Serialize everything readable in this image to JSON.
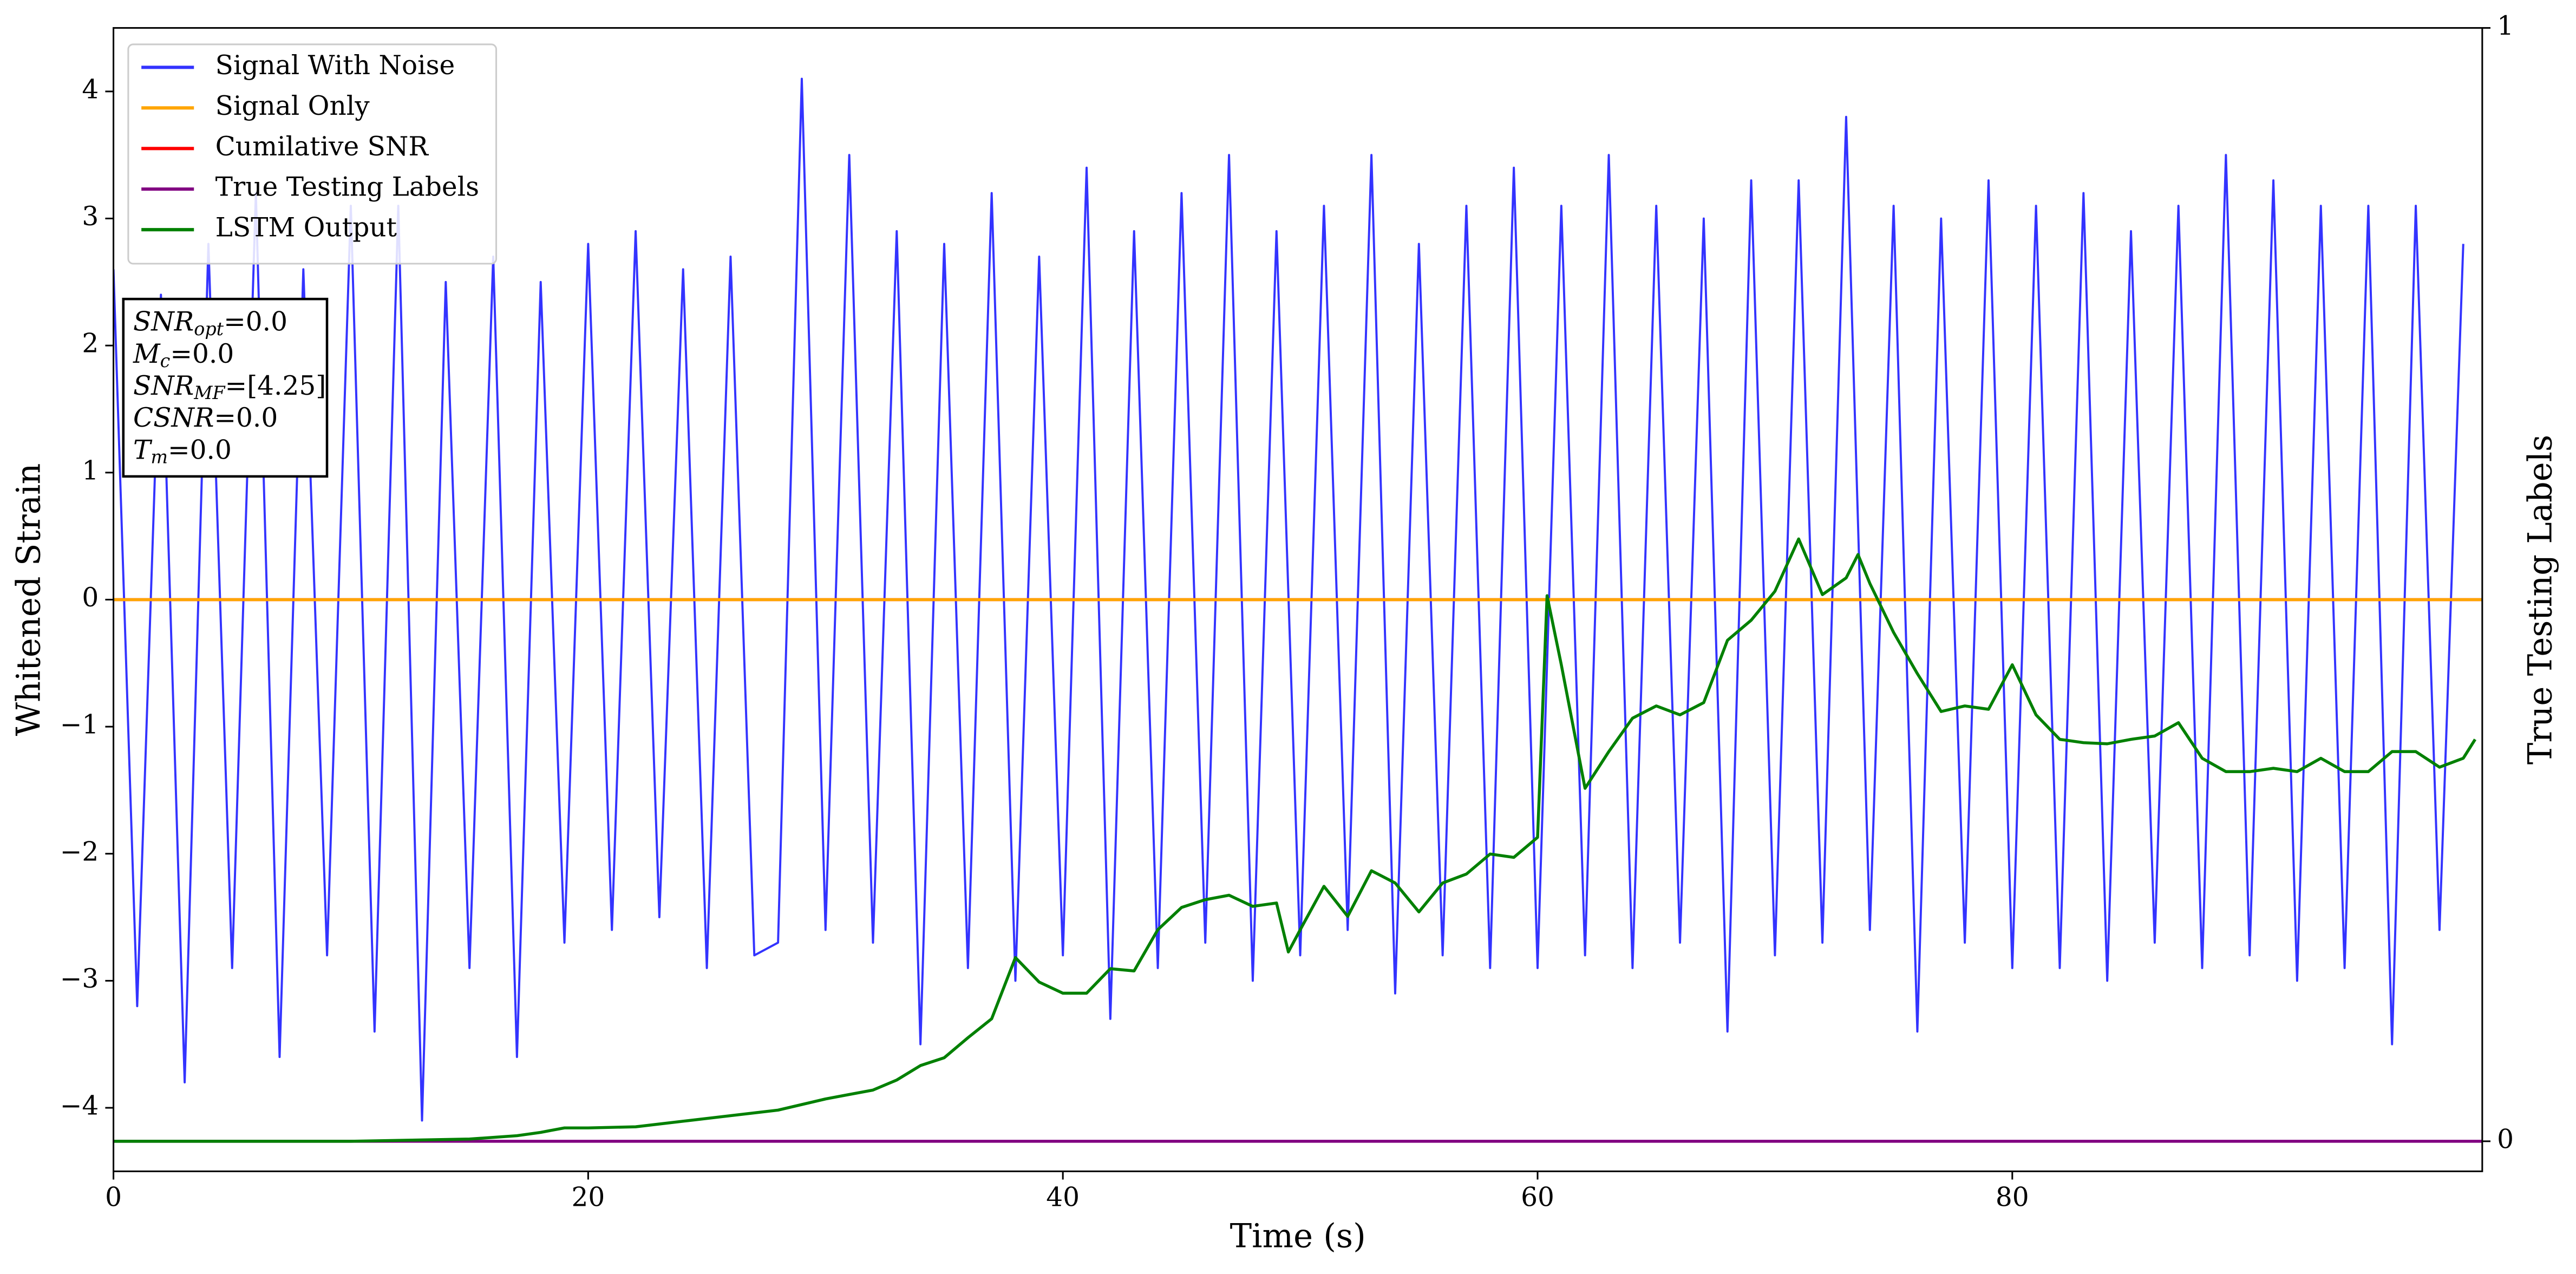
{
  "chart_data": {
    "type": "line",
    "xlabel": "Time (s)",
    "ylabel": "Whitened Strain",
    "y2label": "True Testing Labels",
    "xlim": [
      0,
      99.8
    ],
    "xticks": [
      0,
      20,
      40,
      60,
      80
    ],
    "ylim": [
      -4.5,
      4.5
    ],
    "yticks": [
      {
        "value": -4,
        "label": "−4"
      },
      {
        "value": -3,
        "label": "−3"
      },
      {
        "value": -2,
        "label": "−2"
      },
      {
        "value": -1,
        "label": "−1"
      },
      0,
      1,
      2,
      3,
      4
    ],
    "y2lim": [
      -0.027,
      1
    ],
    "y2ticks": [
      0,
      1
    ],
    "legend": "upper left",
    "annotation": [
      {
        "name": "SNR",
        "sub": "opt",
        "text": "=0.0"
      },
      {
        "name": "M",
        "sub": "c",
        "text": "=0.0"
      },
      {
        "name": "SNR",
        "sub": "MF",
        "text": "=[4.25]"
      },
      {
        "name": "CSNR",
        "sub": null,
        "text": "=0.0"
      },
      {
        "name": "T",
        "sub": "m",
        "text": "=0.0"
      }
    ],
    "series": [
      {
        "name": "Signal With Noise",
        "color": "#3333ff",
        "x": [
          0,
          1,
          2,
          3,
          4,
          5,
          6,
          7,
          8,
          9,
          10,
          11,
          12,
          13,
          14,
          15,
          16,
          17,
          18,
          19,
          20,
          21,
          22,
          23,
          24,
          25,
          26,
          27,
          28,
          29,
          30,
          31,
          32,
          33,
          34,
          35,
          36,
          37,
          38,
          39,
          40,
          41,
          42,
          43,
          44,
          45,
          46,
          47,
          48,
          49,
          50,
          51,
          52,
          53,
          54,
          55,
          56,
          57,
          58,
          59,
          60,
          61,
          62,
          63,
          64,
          65,
          66,
          67,
          68,
          69,
          70,
          71,
          72,
          73,
          74,
          75,
          76,
          77,
          78,
          79,
          80,
          81,
          82,
          83,
          84,
          85,
          86,
          87,
          88,
          89,
          90,
          91,
          92,
          93,
          94,
          95,
          96,
          97,
          98,
          99
        ],
        "values": [
          2.6,
          -3.2,
          2.4,
          -3.8,
          2.8,
          -2.9,
          3.2,
          -3.6,
          2.6,
          -2.8,
          3.1,
          -3.4,
          3.1,
          -4.1,
          2.5,
          -2.9,
          2.7,
          -3.6,
          2.5,
          -2.7,
          2.8,
          -2.6,
          2.9,
          -2.5,
          2.6,
          -2.9,
          2.7,
          -2.8,
          -2.7,
          4.1,
          -2.6,
          3.5,
          -2.7,
          2.9,
          -3.5,
          2.8,
          -2.9,
          3.2,
          -3.0,
          2.7,
          -2.8,
          3.4,
          -3.3,
          2.9,
          -2.9,
          3.2,
          -2.7,
          3.5,
          -3.0,
          2.9,
          -2.8,
          3.1,
          -2.6,
          3.5,
          -3.1,
          2.8,
          -2.8,
          3.1,
          -2.9,
          3.4,
          -2.9,
          3.1,
          -2.8,
          3.5,
          -2.9,
          3.1,
          -2.7,
          3.0,
          -3.4,
          3.3,
          -2.8,
          3.3,
          -2.7,
          3.8,
          -2.6,
          3.1,
          -3.4,
          3.0,
          -2.7,
          3.3,
          -2.9,
          3.1,
          -2.9,
          3.2,
          -3.0,
          2.9,
          -2.7,
          3.1,
          -2.9,
          3.5,
          -2.8,
          3.3,
          -3.0,
          3.1,
          -2.9,
          3.1,
          -3.5,
          3.1,
          -2.6,
          2.8
        ]
      },
      {
        "name": "Signal Only",
        "color": "#ffa500",
        "x": [
          0,
          99.8
        ],
        "values": [
          0,
          0
        ]
      },
      {
        "name": "Cumilative SNR",
        "color": "#ff0000",
        "x": [
          0,
          99.8
        ],
        "values": [
          0,
          0
        ]
      },
      {
        "name": "True Testing Labels",
        "color": "#800080",
        "axis": "y2",
        "x": [
          0,
          99.8
        ],
        "values": [
          0,
          0
        ]
      },
      {
        "name": "LSTM Output",
        "color": "#008000",
        "axis": "y2",
        "x": [
          0,
          10,
          15,
          17,
          18,
          19,
          20,
          22,
          24,
          26,
          28,
          30,
          31,
          32,
          33,
          34,
          35,
          36,
          37,
          38,
          39,
          40,
          41,
          42,
          43,
          44,
          45,
          46,
          47,
          48,
          49,
          49.5,
          50,
          51,
          52,
          53,
          54,
          55,
          56,
          57,
          58,
          59,
          60,
          60.4,
          61,
          62,
          63,
          64,
          65,
          66,
          67,
          68,
          69,
          70,
          71,
          72,
          73,
          73.5,
          74,
          75,
          76,
          77,
          78,
          79,
          80,
          81,
          82,
          83,
          84,
          85,
          86,
          87,
          88,
          89,
          90,
          91,
          92,
          93,
          94,
          95,
          96,
          97,
          98,
          99,
          99.5
        ],
        "values": [
          0,
          0,
          0.002,
          0.005,
          0.008,
          0.012,
          0.012,
          0.013,
          0.018,
          0.023,
          0.028,
          0.038,
          0.042,
          0.046,
          0.055,
          0.068,
          0.075,
          0.093,
          0.11,
          0.165,
          0.143,
          0.133,
          0.133,
          0.155,
          0.153,
          0.19,
          0.21,
          0.217,
          0.221,
          0.211,
          0.214,
          0.17,
          0.19,
          0.229,
          0.202,
          0.243,
          0.232,
          0.206,
          0.232,
          0.24,
          0.258,
          0.255,
          0.273,
          0.49,
          0.428,
          0.317,
          0.35,
          0.38,
          0.391,
          0.383,
          0.394,
          0.45,
          0.468,
          0.494,
          0.541,
          0.491,
          0.506,
          0.527,
          0.501,
          0.457,
          0.42,
          0.386,
          0.391,
          0.388,
          0.428,
          0.383,
          0.361,
          0.358,
          0.357,
          0.361,
          0.364,
          0.376,
          0.344,
          0.332,
          0.332,
          0.335,
          0.332,
          0.344,
          0.332,
          0.332,
          0.35,
          0.35,
          0.336,
          0.344,
          0.361
        ]
      }
    ]
  }
}
